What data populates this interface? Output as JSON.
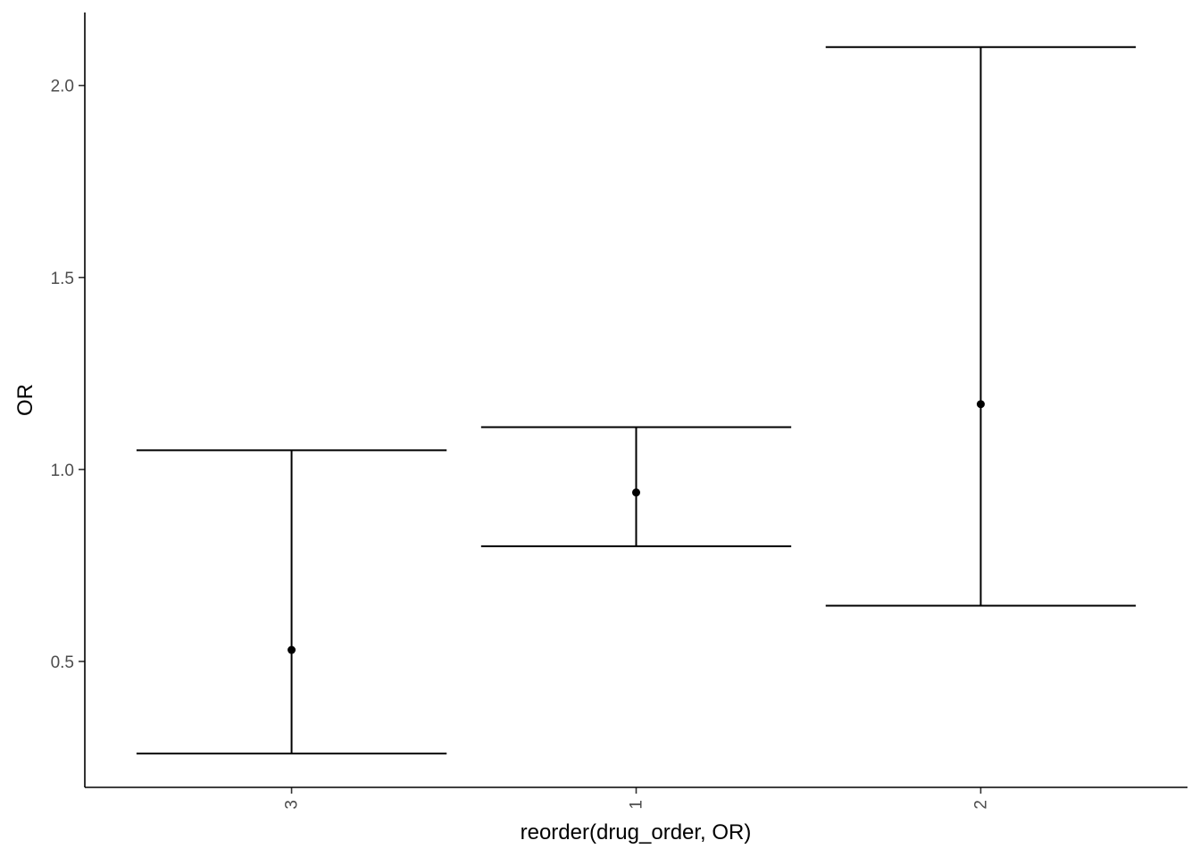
{
  "chart_data": {
    "type": "errorbar",
    "xlabel": "reorder(drug_order, OR)",
    "ylabel": "OR",
    "categories": [
      "3",
      "1",
      "2"
    ],
    "points": [
      {
        "category": "3",
        "OR": 0.53,
        "lower": 0.26,
        "upper": 1.05
      },
      {
        "category": "1",
        "OR": 0.94,
        "lower": 0.8,
        "upper": 1.11
      },
      {
        "category": "2",
        "OR": 1.17,
        "lower": 0.645,
        "upper": 2.1
      }
    ],
    "yticks": [
      0.5,
      1.0,
      1.5,
      2.0
    ],
    "ytick_labels": [
      "0.5",
      "1.0",
      "1.5",
      "2.0"
    ],
    "ylim": [
      0.172,
      2.19
    ],
    "x_tick_label_rotation": "vertical",
    "grid": false,
    "legend": "none"
  }
}
